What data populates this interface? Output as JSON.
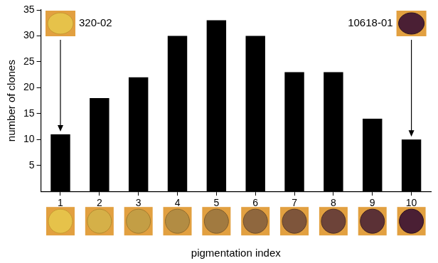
{
  "chart_data": {
    "type": "bar",
    "x_label": "pigmentation index",
    "y_label": "number of clones",
    "categories": [
      "1",
      "2",
      "3",
      "4",
      "5",
      "6",
      "7",
      "8",
      "9",
      "10"
    ],
    "values": [
      11,
      18,
      22,
      30,
      33,
      30,
      23,
      23,
      14,
      10
    ],
    "color": "#000000",
    "ylim": [
      0,
      35
    ],
    "yticks": [
      5,
      10,
      15,
      20,
      25,
      30,
      35
    ],
    "grid": false,
    "annotations": [
      {
        "text": "320-02",
        "category": "1"
      },
      {
        "text": "10618-01",
        "category": "10"
      }
    ]
  }
}
